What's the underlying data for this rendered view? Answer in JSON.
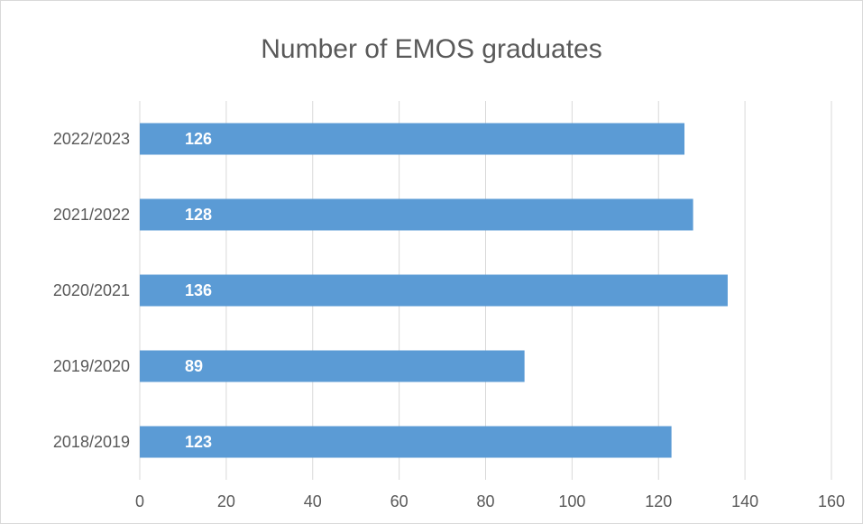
{
  "chart_data": {
    "type": "bar",
    "orientation": "horizontal",
    "title": "Number of EMOS graduates",
    "categories": [
      "2018/2019",
      "2019/2020",
      "2020/2021",
      "2021/2022",
      "2022/2023"
    ],
    "values": [
      123,
      89,
      136,
      128,
      126
    ],
    "xlim": [
      0,
      160
    ],
    "xticks": [
      0,
      20,
      40,
      60,
      80,
      100,
      120,
      140,
      160
    ],
    "grid": "vertical",
    "bar_color": "#5b9bd5",
    "data_labels": true
  }
}
